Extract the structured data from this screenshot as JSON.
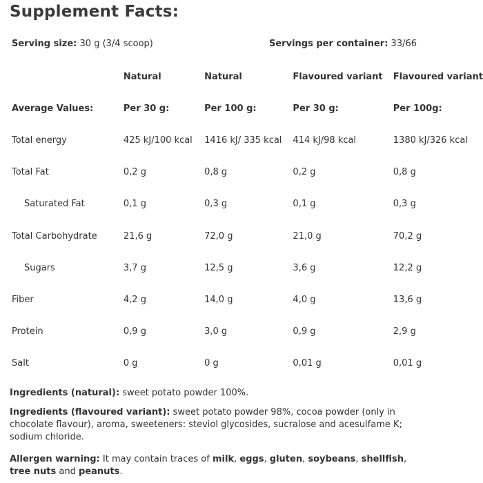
{
  "title": "Supplement Facts:",
  "serving": {
    "size_label": "Serving size:",
    "size_value": " 30 g (3/4 scoop)",
    "per_container_label": "Servings per container:",
    "per_container_value": " 33/66"
  },
  "table": {
    "variant_headers": [
      "",
      "Natural",
      "Natural",
      "Flavoured variant",
      "Flavoured variant"
    ],
    "column_headers": [
      "Average Values:",
      "Per  30 g:",
      "Per 100 g:",
      "Per  30 g:",
      "Per 100g:"
    ],
    "rows": [
      {
        "name": "Total energy",
        "values": [
          "425 kJ/100 kcal",
          "1416 kJ/ 335 kcal",
          "414 kJ/98 kcal",
          "1380 kJ/326 kcal"
        ]
      },
      {
        "name": "Total Fat",
        "values": [
          "0,2 g",
          "0,8 g",
          "0,2 g",
          "0,8 g"
        ]
      },
      {
        "name": "Saturated Fat",
        "values": [
          "0,1 g",
          "0,3 g",
          "0,1 g",
          "0,3 g"
        ]
      },
      {
        "name": "Total Carbohydrate",
        "values": [
          "21,6 g",
          "72,0 g",
          "21,0 g",
          "70,2 g"
        ]
      },
      {
        "name": "Sugars",
        "values": [
          "3,7 g",
          "12,5 g",
          "3,6 g",
          "12,2 g"
        ]
      },
      {
        "name": "Fiber",
        "values": [
          "4,2 g",
          "14,0 g",
          "4,0 g",
          "13,6 g"
        ]
      },
      {
        "name": "Protein",
        "values": [
          "0,9 g",
          "3,0 g",
          "0,9 g",
          "2,9 g"
        ]
      },
      {
        "name": "Salt",
        "values": [
          "0 g",
          "0 g",
          "0,01 g",
          "0,01 g"
        ]
      }
    ]
  },
  "ingredients_natural": {
    "label": "Ingredients (natural):",
    "text": " sweet potato powder 100%."
  },
  "ingredients_flavoured": {
    "label": "Ingredients (flavoured variant):",
    "text": " sweet potato powder 98%, cocoa powder (only in chocolate flavour), aroma, sweeteners: steviol glycosides, sucralose and acesulfame K; sodium chloride."
  },
  "allergen": {
    "label": "Allergen warning:",
    "text1": " It may contain traces of ",
    "b1": "milk",
    "sep1": ", ",
    "b2": "eggs",
    "sep2": ", ",
    "b3": "gluten",
    "sep3": ", ",
    "b4": "soybeans",
    "sep4": ", ",
    "b5": "shellfish",
    "sep5": ", ",
    "b6": "tree nuts",
    "sep6": " and ",
    "b7": "peanuts",
    "end": "."
  }
}
